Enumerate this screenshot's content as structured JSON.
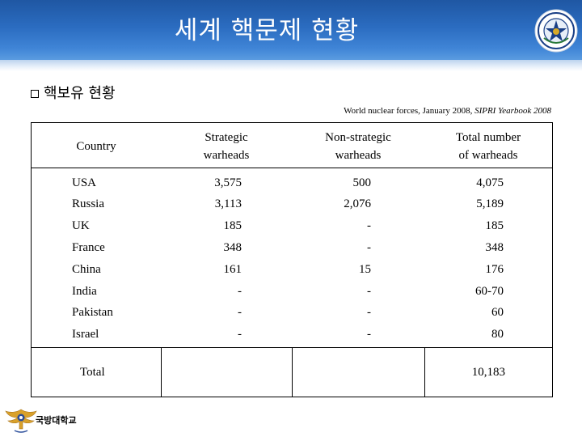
{
  "header": {
    "title": "세계 핵문제 현황"
  },
  "section": {
    "heading": "핵보유 현황",
    "source_plain": "World nuclear forces, January 2008, ",
    "source_italic": "SIPRI Yearbook 2008"
  },
  "table": {
    "columns": [
      {
        "line1": "Country",
        "line2": ""
      },
      {
        "line1": "Strategic",
        "line2": "warheads"
      },
      {
        "line1": "Non-strategic",
        "line2": "warheads"
      },
      {
        "line1": "Total number",
        "line2": "of warheads"
      }
    ],
    "rows": [
      {
        "country": "USA",
        "strategic": "3,575",
        "non_strategic": "500",
        "total": "4,075"
      },
      {
        "country": "Russia",
        "strategic": "3,113",
        "non_strategic": "2,076",
        "total": "5,189"
      },
      {
        "country": "UK",
        "strategic": "185",
        "non_strategic": "-",
        "total": "185"
      },
      {
        "country": "France",
        "strategic": "348",
        "non_strategic": "-",
        "total": "348"
      },
      {
        "country": "China",
        "strategic": "161",
        "non_strategic": "15",
        "total": "176"
      },
      {
        "country": "India",
        "strategic": "-",
        "non_strategic": "-",
        "total": "60-70"
      },
      {
        "country": "Pakistan",
        "strategic": "-",
        "non_strategic": "-",
        "total": "60"
      },
      {
        "country": "Israel",
        "strategic": "-",
        "non_strategic": "-",
        "total": "80"
      }
    ],
    "total_row": {
      "label": "Total",
      "total": "10,183"
    }
  },
  "footer": {
    "label": "국방대학교"
  },
  "colors": {
    "banner": "#2b6cc0",
    "title_text": "#ffffff"
  },
  "icons": {
    "header_emblem": "university-seal-icon",
    "footer_logo": "eagle-emblem-icon"
  }
}
